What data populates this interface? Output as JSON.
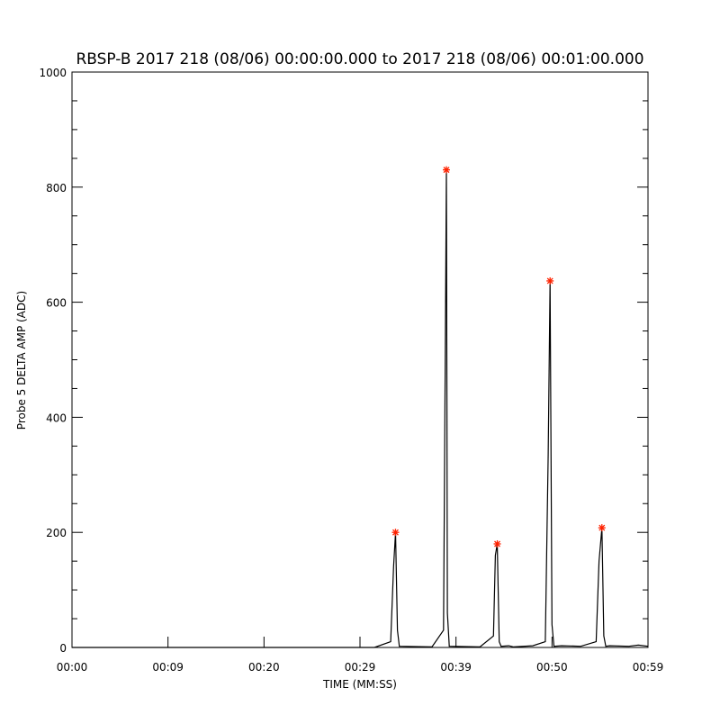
{
  "chart_data": {
    "type": "line",
    "title": "RBSP-B 2017 218 (08/06) 00:00:00.000 to 2017 218 (08/06) 00:01:00.000",
    "xlabel": "TIME (MM:SS)",
    "ylabel": "Probe 5 DELTA AMP (ADC)",
    "xlim": [
      0,
      60
    ],
    "ylim": [
      0,
      1000
    ],
    "x_unit": "seconds",
    "x_ticks": [
      0,
      10,
      20,
      30,
      40,
      50,
      60
    ],
    "x_tick_labels": [
      "00:00",
      "00:09",
      "00:20",
      "00:29",
      "00:39",
      "00:50",
      "00:59"
    ],
    "y_ticks": [
      0,
      200,
      400,
      600,
      800,
      1000
    ],
    "y_tick_labels": [
      "0",
      "200",
      "400",
      "600",
      "800",
      "1000"
    ],
    "grid": false,
    "series": [
      {
        "color": "#000000",
        "x": [
          0,
          31.5,
          33.2,
          33.5,
          33.7,
          33.9,
          34.1,
          37.5,
          38.7,
          38.9,
          39.0,
          39.1,
          39.3,
          42.5,
          43.9,
          44.1,
          44.3,
          44.5,
          44.7,
          45.5,
          46.0,
          48.0,
          49.3,
          49.6,
          49.8,
          50.0,
          50.2,
          51.0,
          53.0,
          54.6,
          54.9,
          55.2,
          55.4,
          55.6,
          56.0,
          58.0,
          59.0,
          60
        ],
        "y": [
          0,
          0,
          10,
          140,
          200,
          30,
          2,
          1,
          30,
          545,
          830,
          60,
          2,
          1,
          20,
          160,
          180,
          10,
          2,
          3,
          1,
          3,
          10,
          335,
          637,
          40,
          2,
          3,
          2,
          10,
          150,
          208,
          20,
          2,
          3,
          2,
          4,
          2
        ]
      },
      {
        "name": "",
        "color": "#ff2200",
        "marker": "asterisk",
        "x": [
          33.7,
          39.0,
          44.3,
          49.8,
          55.2
        ],
        "y": [
          200,
          830,
          180,
          637,
          208
        ]
      }
    ]
  }
}
